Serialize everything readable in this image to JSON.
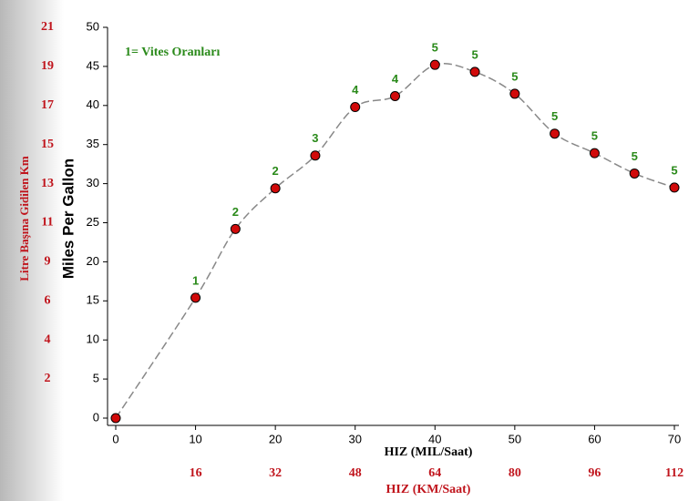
{
  "chart_data": {
    "type": "line",
    "y_label": "Miles Per Gallon",
    "y2_label": "Litre Başına Gidilen Km",
    "x_label": "HIZ (MIL/Saat)",
    "x2_label": "HIZ (KM/Saat)",
    "annotation": "1= Vites Oranları",
    "x": [
      0,
      10,
      15,
      20,
      25,
      30,
      35,
      40,
      45,
      50,
      55,
      60,
      65,
      70
    ],
    "series": [
      {
        "name": "Miles Per Gallon",
        "color": "#d10a0a",
        "line_color": "#888888",
        "values": [
          0,
          15.4,
          24.2,
          29.4,
          33.6,
          39.8,
          41.2,
          45.2,
          44.3,
          41.5,
          36.4,
          33.9,
          31.3,
          29.5
        ],
        "gears": [
          null,
          "1",
          "2",
          "2",
          "3",
          "4",
          "4",
          "5",
          "5",
          "5",
          "5",
          "5",
          "5",
          "5"
        ]
      }
    ],
    "xlim": [
      0,
      70
    ],
    "xticks": [
      0,
      10,
      20,
      30,
      40,
      50,
      60,
      70
    ],
    "x2lim": [
      0,
      112
    ],
    "x2ticks": [
      16,
      32,
      48,
      64,
      80,
      96,
      112
    ],
    "ylim": [
      0,
      50
    ],
    "yticks": [
      0,
      5,
      10,
      15,
      20,
      25,
      30,
      35,
      40,
      45,
      50
    ],
    "y2lim": [
      0,
      21.26
    ],
    "y2ticks": [
      {
        "value": 2.13,
        "label": "2"
      },
      {
        "value": 4.25,
        "label": "4"
      },
      {
        "value": 6.38,
        "label": "6"
      },
      {
        "value": 8.5,
        "label": "9"
      },
      {
        "value": 10.63,
        "label": "11"
      },
      {
        "value": 12.75,
        "label": "13"
      },
      {
        "value": 14.88,
        "label": "15"
      },
      {
        "value": 17.0,
        "label": "17"
      },
      {
        "value": 19.13,
        "label": "19"
      },
      {
        "value": 21.26,
        "label": "21"
      }
    ]
  }
}
